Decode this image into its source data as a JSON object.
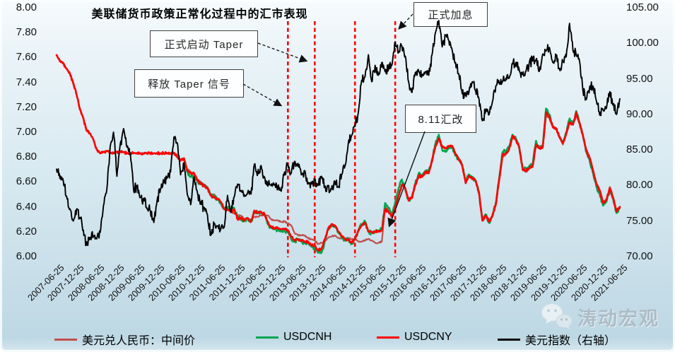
{
  "title": "美联储货币政策正常化过程中的汇市表现",
  "watermark": {
    "text": "涛动宏观",
    "icon": "wechat-icon"
  },
  "annotations": {
    "taper_signal": {
      "label": "释放 Taper 信号"
    },
    "taper_start": {
      "label": "正式启动 Taper"
    },
    "rate_hike": {
      "label": "正式加息"
    },
    "reform_811": {
      "label": "8.11汇改"
    }
  },
  "colors": {
    "parity_line": "#C0504D",
    "usdcnh_line": "#00A64F",
    "usdcny_line": "#FF0000",
    "dxy_line": "#000000",
    "event_dashed_line": "#FF0000"
  },
  "chart_data": {
    "type": "line",
    "title": "美联储货币政策正常化过程中的汇市表现",
    "x_start": "2007-06",
    "x_interval_months": 1,
    "x_tick_labels": [
      "2007-06-25",
      "2007-12-25",
      "2008-06-25",
      "2008-12-25",
      "2009-06-25",
      "2009-12-25",
      "2010-06-25",
      "2010-12-25",
      "2011-06-25",
      "2011-12-25",
      "2012-06-25",
      "2012-12-25",
      "2013-06-25",
      "2013-12-25",
      "2014-06-25",
      "2014-12-25",
      "2015-06-25",
      "2015-12-25",
      "2016-06-25",
      "2016-12-25",
      "2017-06-25",
      "2017-12-25",
      "2018-06-25",
      "2018-12-25",
      "2019-06-25",
      "2019-12-25",
      "2020-06-25",
      "2020-12-25",
      "2021-06-25"
    ],
    "left_axis": {
      "min": 6.0,
      "max": 8.0,
      "tick_labels": [
        "8.00",
        "7.80",
        "7.60",
        "7.40",
        "7.20",
        "7.00",
        "6.80",
        "6.60",
        "6.40",
        "6.20",
        "6.00"
      ]
    },
    "right_axis": {
      "min": 70.0,
      "max": 105.0,
      "tick_labels": [
        "105.00",
        "100.00",
        "95.00",
        "90.00",
        "85.00",
        "80.00",
        "75.00",
        "70.00"
      ]
    },
    "grid": false,
    "legend_position": "bottom",
    "events": [
      {
        "label": "释放 Taper 信号",
        "date": "2013-03",
        "vline": true
      },
      {
        "label": "正式启动 Taper",
        "date": "2013-11",
        "vline": true
      },
      {
        "label": "",
        "date": "2014-11",
        "vline": true
      },
      {
        "label": "正式加息",
        "date": "2015-11",
        "vline": true
      },
      {
        "label": "8.11汇改",
        "date": "2015-08",
        "vline": false
      }
    ],
    "series": [
      {
        "name": "美元兑人民币：中间价",
        "axis": "left",
        "color": "#C0504D",
        "width": 2.2,
        "noise": 0.006,
        "values": [
          7.62,
          7.57,
          7.56,
          7.51,
          7.47,
          7.4,
          7.3,
          7.19,
          7.11,
          7.02,
          6.99,
          6.94,
          6.86,
          6.83,
          6.84,
          6.85,
          6.83,
          6.83,
          6.84,
          6.84,
          6.84,
          6.83,
          6.83,
          6.83,
          6.83,
          6.83,
          6.83,
          6.83,
          6.83,
          6.83,
          6.83,
          6.83,
          6.83,
          6.83,
          6.83,
          6.83,
          6.8,
          6.78,
          6.79,
          6.7,
          6.68,
          6.67,
          6.62,
          6.6,
          6.58,
          6.56,
          6.5,
          6.5,
          6.47,
          6.44,
          6.39,
          6.39,
          6.36,
          6.35,
          6.33,
          6.33,
          6.3,
          6.31,
          6.29,
          6.32,
          6.32,
          6.33,
          6.34,
          6.33,
          6.3,
          6.29,
          6.29,
          6.28,
          6.28,
          6.27,
          6.25,
          6.19,
          6.17,
          6.17,
          6.17,
          6.15,
          6.14,
          6.13,
          6.1,
          6.11,
          6.12,
          6.15,
          6.16,
          6.17,
          6.15,
          6.15,
          6.14,
          6.15,
          6.14,
          6.14,
          6.12,
          6.12,
          6.13,
          6.14,
          6.13,
          6.11,
          6.11,
          6.12,
          6.4,
          6.37,
          6.35,
          6.39,
          6.48,
          6.57,
          6.55,
          6.46,
          6.47,
          6.57,
          6.64,
          6.64,
          6.67,
          6.67,
          6.76,
          6.88,
          6.94,
          6.89,
          6.87,
          6.89,
          6.88,
          6.83,
          6.79,
          6.74,
          6.6,
          6.65,
          6.62,
          6.61,
          6.52,
          6.3,
          6.32,
          6.29,
          6.32,
          6.41,
          6.6,
          6.8,
          6.82,
          6.86,
          6.96,
          6.94,
          6.88,
          6.71,
          6.68,
          6.71,
          6.72,
          6.89,
          6.87,
          6.88,
          7.14,
          7.11,
          7.04,
          7.02,
          6.97,
          6.9,
          6.98,
          7.07,
          7.06,
          7.13,
          7.08,
          6.98,
          6.86,
          6.8,
          6.7,
          6.59,
          6.54,
          6.44,
          6.46,
          6.56,
          6.48,
          6.37,
          6.4
        ]
      },
      {
        "name": "USDCNH",
        "axis": "left",
        "color": "#00A64F",
        "width": 2.6,
        "noise": 0.016,
        "values": [
          null,
          null,
          null,
          null,
          null,
          null,
          null,
          null,
          null,
          null,
          null,
          null,
          null,
          null,
          null,
          null,
          null,
          null,
          null,
          null,
          null,
          null,
          null,
          null,
          null,
          null,
          null,
          null,
          null,
          null,
          null,
          null,
          null,
          null,
          null,
          null,
          null,
          null,
          6.79,
          6.68,
          6.64,
          6.65,
          6.6,
          6.59,
          6.57,
          6.55,
          6.49,
          6.48,
          6.46,
          6.43,
          6.38,
          6.4,
          6.37,
          6.39,
          6.31,
          6.3,
          6.29,
          6.31,
          6.28,
          6.36,
          6.36,
          6.35,
          6.34,
          6.26,
          6.23,
          6.22,
          6.22,
          6.2,
          6.21,
          6.2,
          6.14,
          6.12,
          6.14,
          6.12,
          6.11,
          6.11,
          6.08,
          6.07,
          6.03,
          6.03,
          6.12,
          6.23,
          6.25,
          6.24,
          6.2,
          6.16,
          6.13,
          6.14,
          6.1,
          6.14,
          6.21,
          6.26,
          6.28,
          6.2,
          6.19,
          6.2,
          6.21,
          6.21,
          6.43,
          6.39,
          6.33,
          6.43,
          6.55,
          6.62,
          6.54,
          6.45,
          6.48,
          6.59,
          6.67,
          6.65,
          6.69,
          6.68,
          6.78,
          6.91,
          6.98,
          6.86,
          6.85,
          6.88,
          6.88,
          6.81,
          6.78,
          6.73,
          6.6,
          6.66,
          6.64,
          6.61,
          6.51,
          6.29,
          6.34,
          6.27,
          6.33,
          6.43,
          6.63,
          6.84,
          6.85,
          6.88,
          6.98,
          6.95,
          6.87,
          6.71,
          6.7,
          6.72,
          6.74,
          6.93,
          6.87,
          6.89,
          7.19,
          7.14,
          7.05,
          7.03,
          6.96,
          6.92,
          7.0,
          7.11,
          7.06,
          7.17,
          7.07,
          6.97,
          6.84,
          6.77,
          6.67,
          6.56,
          6.5,
          6.41,
          6.44,
          6.54,
          6.46,
          6.35,
          6.39
        ]
      },
      {
        "name": "USDCNY",
        "axis": "left",
        "color": "#FF0000",
        "width": 2.6,
        "noise": 0.011,
        "values": [
          7.62,
          7.57,
          7.55,
          7.51,
          7.47,
          7.39,
          7.3,
          7.18,
          7.11,
          7.01,
          6.99,
          6.94,
          6.86,
          6.83,
          6.84,
          6.85,
          6.84,
          6.83,
          6.84,
          6.84,
          6.84,
          6.83,
          6.83,
          6.83,
          6.83,
          6.83,
          6.83,
          6.83,
          6.83,
          6.83,
          6.83,
          6.83,
          6.83,
          6.83,
          6.83,
          6.83,
          6.8,
          6.77,
          6.79,
          6.69,
          6.67,
          6.67,
          6.61,
          6.59,
          6.57,
          6.55,
          6.49,
          6.48,
          6.46,
          6.44,
          6.38,
          6.38,
          6.36,
          6.38,
          6.3,
          6.31,
          6.29,
          6.31,
          6.28,
          6.37,
          6.35,
          6.36,
          6.34,
          6.28,
          6.24,
          6.23,
          6.23,
          6.22,
          6.22,
          6.21,
          6.16,
          6.13,
          6.14,
          6.13,
          6.12,
          6.12,
          6.09,
          6.09,
          6.05,
          6.06,
          6.14,
          6.22,
          6.26,
          6.25,
          6.2,
          6.17,
          6.14,
          6.14,
          6.11,
          6.14,
          6.21,
          6.25,
          6.27,
          6.2,
          6.2,
          6.2,
          6.2,
          6.21,
          6.38,
          6.36,
          6.32,
          6.4,
          6.49,
          6.58,
          6.55,
          6.45,
          6.47,
          6.58,
          6.65,
          6.64,
          6.68,
          6.67,
          6.77,
          6.89,
          6.95,
          6.88,
          6.87,
          6.89,
          6.89,
          6.82,
          6.78,
          6.73,
          6.59,
          6.65,
          6.63,
          6.61,
          6.51,
          6.29,
          6.33,
          6.28,
          6.33,
          6.42,
          6.62,
          6.82,
          6.83,
          6.87,
          6.97,
          6.94,
          6.88,
          6.7,
          6.69,
          6.71,
          6.73,
          6.9,
          6.87,
          6.88,
          7.16,
          7.12,
          7.04,
          7.03,
          6.96,
          6.91,
          6.99,
          7.08,
          7.06,
          7.16,
          7.07,
          6.97,
          6.85,
          6.79,
          6.69,
          6.58,
          6.53,
          6.43,
          6.46,
          6.55,
          6.47,
          6.36,
          6.4
        ]
      },
      {
        "name": "美元指数（右轴）",
        "axis": "right",
        "color": "#000000",
        "width": 1.9,
        "noise": 0.7,
        "values": [
          82.3,
          81.0,
          80.7,
          78.5,
          76.7,
          75.0,
          76.7,
          75.5,
          73.7,
          71.6,
          72.7,
          72.9,
          72.5,
          73.4,
          77.2,
          79.5,
          85.5,
          87.5,
          81.3,
          85.8,
          88.0,
          85.4,
          84.6,
          79.3,
          80.0,
          78.3,
          78.2,
          76.7,
          76.4,
          74.8,
          77.9,
          79.5,
          80.4,
          81.1,
          81.9,
          86.8,
          86.0,
          81.5,
          83.2,
          78.7,
          77.3,
          81.2,
          79.0,
          77.7,
          76.9,
          75.9,
          73.0,
          74.6,
          74.3,
          73.9,
          74.1,
          78.6,
          76.2,
          78.4,
          80.2,
          79.3,
          78.7,
          79.0,
          78.8,
          83.0,
          81.6,
          82.8,
          81.2,
          79.9,
          80.0,
          80.2,
          79.8,
          79.2,
          81.9,
          83.0,
          81.7,
          83.4,
          83.1,
          81.5,
          82.1,
          80.2,
          80.2,
          80.7,
          80.0,
          81.3,
          79.7,
          80.0,
          79.5,
          80.4,
          79.8,
          81.5,
          82.7,
          85.9,
          87.0,
          88.3,
          90.3,
          94.8,
          95.3,
          98.4,
          94.6,
          96.9,
          95.5,
          97.3,
          96.0,
          96.4,
          96.9,
          100.2,
          98.7,
          99.6,
          98.2,
          94.6,
          93.1,
          95.9,
          96.1,
          95.5,
          96.0,
          95.5,
          98.4,
          101.5,
          103.2,
          99.5,
          101.1,
          100.4,
          99.0,
          97.3,
          95.6,
          92.9,
          92.7,
          93.1,
          94.6,
          93.3,
          92.1,
          89.1,
          90.6,
          90.0,
          91.8,
          94.0,
          94.5,
          94.6,
          95.1,
          95.1,
          97.1,
          97.3,
          96.2,
          95.6,
          96.1,
          97.3,
          97.5,
          97.7,
          96.1,
          98.5,
          98.9,
          99.4,
          97.3,
          98.3,
          96.4,
          97.4,
          98.1,
          102.8,
          99.0,
          98.3,
          97.4,
          93.3,
          92.1,
          93.9,
          94.0,
          91.9,
          89.9,
          90.6,
          90.9,
          93.2,
          91.3,
          90.0,
          92.2
        ]
      }
    ]
  },
  "legend": [
    {
      "label": "美元兑人民币：中间价",
      "color": "#C0504D",
      "x": 77
    },
    {
      "label": "USDCNH",
      "color": "#00A64F",
      "x": 362
    },
    {
      "label": "USDCNY",
      "color": "#FF0000",
      "x": 533
    },
    {
      "label": "美元指数（右轴）",
      "color": "#000000",
      "x": 704
    }
  ]
}
